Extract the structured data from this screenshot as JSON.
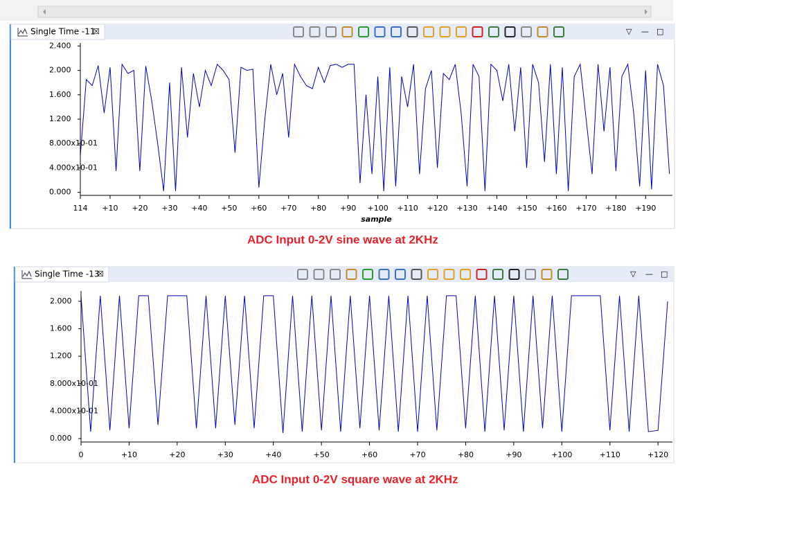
{
  "chart_data": [
    {
      "type": "line",
      "tab": "Single Time -11",
      "caption": "ADC Input 0-2V sine wave at 2KHz",
      "x_label": "sample",
      "color": "#0000c0",
      "x": [
        114,
        116,
        118,
        120,
        122,
        124,
        126,
        128,
        130,
        132,
        134,
        136,
        138,
        140,
        142,
        144,
        146,
        148,
        150,
        152,
        154,
        156,
        158,
        160,
        162,
        164,
        166,
        168,
        170,
        172,
        174,
        176,
        178,
        180,
        182,
        184,
        186,
        188,
        190,
        192,
        194,
        196,
        198,
        200,
        202,
        204,
        206,
        208,
        210,
        212,
        214,
        216,
        218,
        220,
        222,
        224,
        226,
        228,
        230,
        232,
        234,
        236,
        238,
        240,
        242,
        244,
        246,
        248,
        250,
        252,
        254,
        256,
        258,
        260,
        262,
        264,
        266,
        268,
        270,
        272,
        274,
        276,
        278,
        280,
        282,
        284,
        286,
        288,
        290,
        292,
        294,
        296,
        298,
        300,
        302,
        304,
        306,
        308,
        310,
        312
      ],
      "values": [
        0.6,
        1.85,
        1.75,
        2.08,
        1.3,
        2.05,
        0.35,
        2.1,
        1.95,
        2.0,
        0.35,
        2.07,
        1.5,
        0.8,
        0.02,
        1.8,
        0.02,
        2.05,
        0.9,
        1.95,
        1.4,
        2.0,
        1.75,
        2.1,
        2.0,
        1.85,
        0.65,
        2.05,
        2.0,
        2.02,
        0.08,
        1.2,
        2.1,
        1.6,
        1.95,
        0.9,
        2.1,
        1.9,
        1.75,
        1.7,
        2.05,
        1.8,
        2.08,
        2.1,
        2.05,
        2.1,
        2.1,
        0.15,
        1.6,
        0.3,
        1.9,
        0.02,
        2.05,
        0.1,
        1.9,
        1.4,
        2.1,
        0.3,
        1.7,
        2.0,
        0.4,
        1.95,
        1.85,
        2.1,
        1.3,
        0.1,
        2.1,
        1.9,
        0.02,
        2.1,
        2.0,
        1.5,
        2.1,
        1.0,
        2.05,
        0.4,
        2.1,
        1.8,
        0.5,
        2.1,
        0.3,
        2.05,
        0.02,
        1.9,
        2.1,
        1.2,
        0.3,
        2.1,
        1.0,
        2.05,
        0.35,
        1.9,
        2.1,
        1.3,
        0.1,
        2.0,
        0.05,
        2.1,
        1.75,
        0.3
      ],
      "xlim": [
        114,
        313
      ],
      "xticks": [
        114,
        {
          "value": 124,
          "label": "+10"
        },
        {
          "value": 134,
          "label": "+20"
        },
        {
          "value": 144,
          "label": "+30"
        },
        {
          "value": 154,
          "label": "+40"
        },
        {
          "value": 164,
          "label": "+50"
        },
        {
          "value": 174,
          "label": "+60"
        },
        {
          "value": 184,
          "label": "+70"
        },
        {
          "value": 194,
          "label": "+80"
        },
        {
          "value": 204,
          "label": "+90"
        },
        {
          "value": 214,
          "label": "+100"
        },
        {
          "value": 224,
          "label": "+110"
        },
        {
          "value": 234,
          "label": "+120"
        },
        {
          "value": 244,
          "label": "+130"
        },
        {
          "value": 254,
          "label": "+140"
        },
        {
          "value": 264,
          "label": "+150"
        },
        {
          "value": 274,
          "label": "+160"
        },
        {
          "value": 284,
          "label": "+170"
        },
        {
          "value": 294,
          "label": "+180"
        },
        {
          "value": 304,
          "label": "+190"
        }
      ],
      "ylim": [
        -0.05,
        2.45
      ],
      "yticks": [
        {
          "value": 0,
          "label": "0.000"
        },
        {
          "value": 0.4,
          "label": "4.000x10-01"
        },
        {
          "value": 0.8,
          "label": "8.000x10-01"
        },
        {
          "value": 1.2,
          "label": "1.200"
        },
        {
          "value": 1.6,
          "label": "1.600"
        },
        {
          "value": 2.0,
          "label": "2.000"
        },
        {
          "value": 2.4,
          "label": "2.400"
        }
      ]
    },
    {
      "type": "line",
      "tab": "Single Time -13",
      "caption": "ADC Input 0-2V square wave at 2KHz",
      "color": "#0000c0",
      "x": [
        0,
        2,
        4,
        6,
        8,
        10,
        12,
        14,
        16,
        18,
        20,
        22,
        24,
        26,
        28,
        30,
        32,
        34,
        36,
        38,
        40,
        42,
        44,
        46,
        48,
        50,
        52,
        54,
        56,
        58,
        60,
        62,
        64,
        66,
        68,
        70,
        72,
        74,
        76,
        78,
        80,
        82,
        84,
        86,
        88,
        90,
        92,
        94,
        96,
        98,
        100,
        102,
        104,
        106,
        108,
        110,
        112,
        114,
        116,
        118,
        120,
        122
      ],
      "values": [
        2.08,
        0.1,
        2.08,
        0.12,
        2.08,
        0.15,
        2.08,
        2.08,
        0.2,
        2.08,
        2.08,
        2.08,
        0.15,
        2.08,
        0.15,
        2.08,
        0.2,
        2.08,
        0.15,
        2.08,
        2.08,
        0.08,
        2.08,
        0.1,
        2.08,
        0.12,
        2.08,
        0.1,
        2.08,
        0.15,
        2.08,
        0.12,
        2.08,
        0.1,
        2.08,
        0.1,
        2.08,
        0.12,
        2.08,
        2.08,
        0.15,
        2.08,
        0.1,
        2.08,
        0.12,
        2.08,
        0.1,
        2.08,
        0.15,
        2.08,
        0.1,
        2.08,
        2.08,
        2.08,
        2.08,
        0.12,
        2.08,
        0.1,
        2.08,
        0.1,
        0.12,
        2.0
      ],
      "xlim": [
        0,
        123
      ],
      "xticks": [
        0,
        {
          "value": 10,
          "label": "+10"
        },
        {
          "value": 20,
          "label": "+20"
        },
        {
          "value": 30,
          "label": "+30"
        },
        {
          "value": 40,
          "label": "+40"
        },
        {
          "value": 50,
          "label": "+50"
        },
        {
          "value": 60,
          "label": "+60"
        },
        {
          "value": 70,
          "label": "+70"
        },
        {
          "value": 80,
          "label": "+80"
        },
        {
          "value": 90,
          "label": "+90"
        },
        {
          "value": 100,
          "label": "+100"
        },
        {
          "value": 110,
          "label": "+110"
        },
        {
          "value": 120,
          "label": "+120"
        }
      ],
      "ylim": [
        -0.05,
        2.15
      ],
      "yticks": [
        {
          "value": 0,
          "label": "0.000"
        },
        {
          "value": 0.4,
          "label": "4.000x10-01"
        },
        {
          "value": 0.8,
          "label": "8.000x10-01"
        },
        {
          "value": 1.2,
          "label": "1.200"
        },
        {
          "value": 1.6,
          "label": "1.600"
        },
        {
          "value": 2.0,
          "label": "2.000"
        }
      ]
    }
  ]
}
